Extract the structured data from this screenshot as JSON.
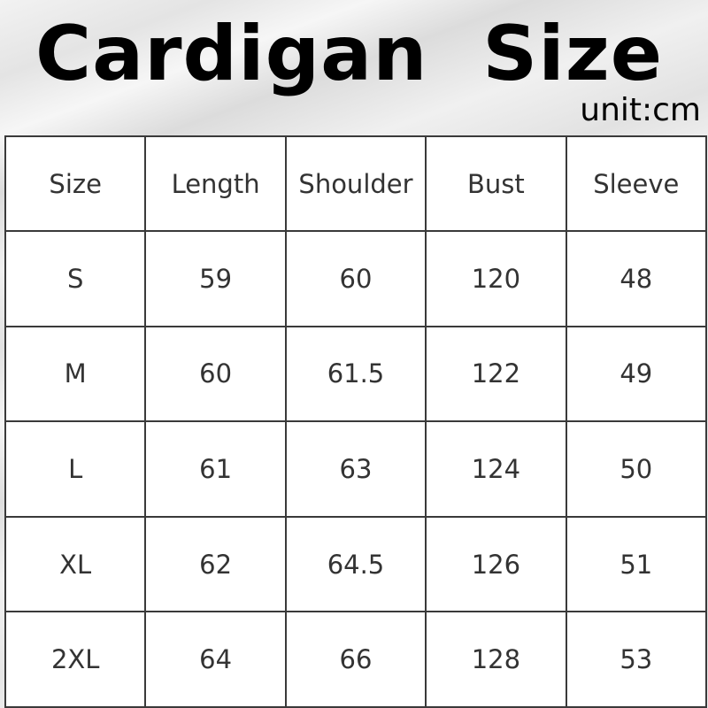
{
  "title": "Cardigan  Size",
  "unit": "unit:cm",
  "table": {
    "headers": [
      "Size",
      "Length",
      "Shoulder",
      "Bust",
      "Sleeve"
    ],
    "rows": [
      [
        "S",
        "59",
        "60",
        "120",
        "48"
      ],
      [
        "M",
        "60",
        "61.5",
        "122",
        "49"
      ],
      [
        "L",
        "61",
        "63",
        "124",
        "50"
      ],
      [
        "XL",
        "62",
        "64.5",
        "126",
        "51"
      ],
      [
        "2XL",
        "64",
        "66",
        "128",
        "53"
      ]
    ]
  }
}
